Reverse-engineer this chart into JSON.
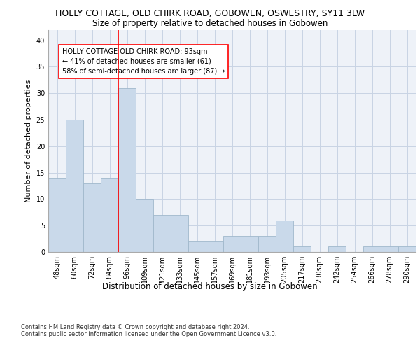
{
  "title": "HOLLY COTTAGE, OLD CHIRK ROAD, GOBOWEN, OSWESTRY, SY11 3LW",
  "subtitle": "Size of property relative to detached houses in Gobowen",
  "xlabel_bottom": "Distribution of detached houses by size in Gobowen",
  "ylabel": "Number of detached properties",
  "categories": [
    "48sqm",
    "60sqm",
    "72sqm",
    "84sqm",
    "96sqm",
    "109sqm",
    "121sqm",
    "133sqm",
    "145sqm",
    "157sqm",
    "169sqm",
    "181sqm",
    "193sqm",
    "205sqm",
    "217sqm",
    "230sqm",
    "242sqm",
    "254sqm",
    "266sqm",
    "278sqm",
    "290sqm"
  ],
  "values": [
    14,
    25,
    13,
    14,
    31,
    10,
    7,
    7,
    2,
    2,
    3,
    3,
    3,
    6,
    1,
    0,
    1,
    0,
    1,
    1,
    1
  ],
  "bar_color": "#c9d9ea",
  "bar_edge_color": "#a0b8cc",
  "bar_linewidth": 0.6,
  "grid_color": "#c8d4e4",
  "background_color": "#eef2f8",
  "red_line_index": 3.5,
  "annotation_box_text": "HOLLY COTTAGE OLD CHIRK ROAD: 93sqm\n← 41% of detached houses are smaller (61)\n58% of semi-detached houses are larger (87) →",
  "ylim": [
    0,
    42
  ],
  "yticks": [
    0,
    5,
    10,
    15,
    20,
    25,
    30,
    35,
    40
  ],
  "footnote": "Contains HM Land Registry data © Crown copyright and database right 2024.\nContains public sector information licensed under the Open Government Licence v3.0.",
  "title_fontsize": 9,
  "subtitle_fontsize": 8.5,
  "ylabel_fontsize": 8,
  "tick_fontsize": 7,
  "annotation_fontsize": 7,
  "footnote_fontsize": 6,
  "xlabel_bottom_fontsize": 8.5
}
